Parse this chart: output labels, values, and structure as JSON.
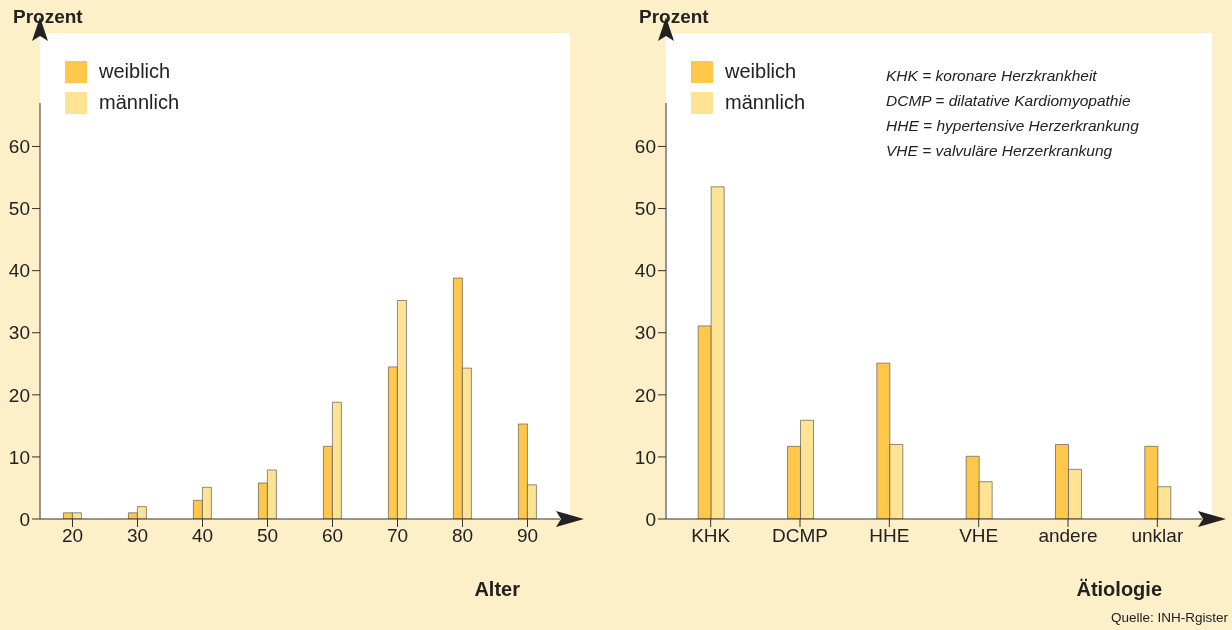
{
  "chart_data": [
    {
      "type": "bar",
      "categories": [
        "20",
        "30",
        "40",
        "50",
        "60",
        "70",
        "80",
        "90"
      ],
      "xlabel": "Alter",
      "ylabel": "Prozent",
      "ylim": [
        0,
        67
      ],
      "yticks": [
        0,
        10,
        20,
        30,
        40,
        50,
        60
      ],
      "grid": false,
      "legend": "top left",
      "series": [
        {
          "name": "weiblich",
          "color": "#ffc84d",
          "values": [
            1,
            1,
            3,
            5.8,
            11.7,
            24.5,
            38.8,
            15.3
          ]
        },
        {
          "name": "männlich",
          "color": "#ffe394",
          "values": [
            1,
            2,
            5.1,
            7.9,
            18.8,
            35.2,
            24.3,
            5.5
          ]
        }
      ]
    },
    {
      "type": "bar",
      "categories": [
        "KHK",
        "DCMP",
        "HHE",
        "VHE",
        "andere",
        "unklar"
      ],
      "xlabel": "Ätiologie",
      "ylabel": "Prozent",
      "ylim": [
        0,
        67
      ],
      "yticks": [
        0,
        10,
        20,
        30,
        40,
        50,
        60
      ],
      "grid": false,
      "legend": "top left",
      "series": [
        {
          "name": "weiblich",
          "color": "#ffc84d",
          "values": [
            31.1,
            11.7,
            25.1,
            10.1,
            12,
            11.7
          ]
        },
        {
          "name": "männlich",
          "color": "#ffe394",
          "values": [
            53.5,
            15.9,
            12,
            6,
            8,
            5.2
          ]
        }
      ],
      "annotations": [
        "KHK = koronare Herzkrankheit",
        "DCMP = dilatative Kardiomyopathie",
        "HHE =  hypertensive Herzerkrankung",
        "VHE = valvuläre Herzerkrankung",
        "Quelle: INH-Rgister"
      ]
    }
  ]
}
